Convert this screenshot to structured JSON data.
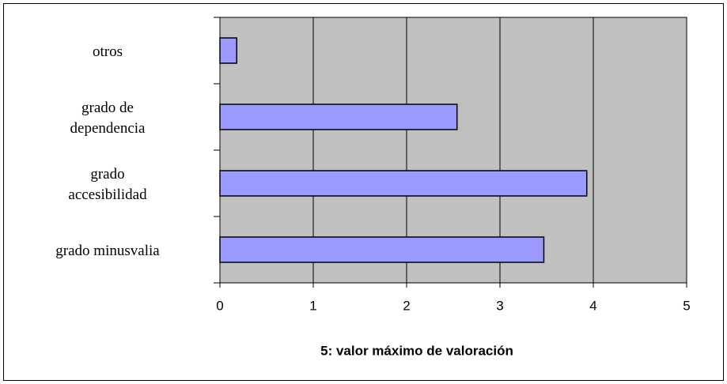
{
  "chart_data": {
    "type": "bar",
    "orientation": "horizontal",
    "categories": [
      "otros",
      "grado de\ndependencia",
      "grado\naccesibilidad",
      "grado minusvalia"
    ],
    "values": [
      0.18,
      2.54,
      3.93,
      3.47
    ],
    "color": "#9999ff",
    "xlim": [
      0,
      5
    ],
    "xticks": [
      0,
      1,
      2,
      3,
      4,
      5
    ],
    "grid": true,
    "xlabel": "5: valor máximo de valoración"
  }
}
